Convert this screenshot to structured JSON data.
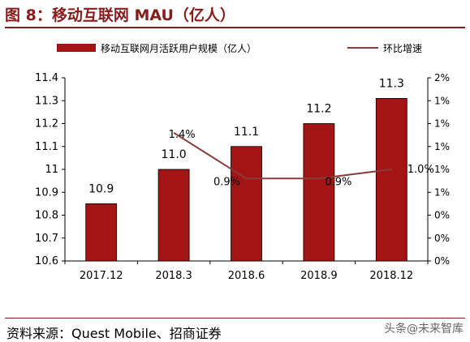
{
  "figure": {
    "title": "图 8：移动互联网 MAU（亿人）",
    "source": "资料来源：Quest Mobile、招商证券",
    "watermark": "头条@未来智库"
  },
  "chart_data": {
    "type": "bar",
    "categories": [
      "2017.12",
      "2018.3",
      "2018.6",
      "2018.9",
      "2018.12"
    ],
    "series": [
      {
        "name": "移动互联网月活跃用户规模（亿人）",
        "type": "bar",
        "axis": "left",
        "values": [
          10.85,
          11.0,
          11.1,
          11.2,
          11.31
        ],
        "data_labels": [
          "10.9",
          "11.0",
          "11.1",
          "11.2",
          "11.3"
        ],
        "color": "#a31515"
      },
      {
        "name": "环比增速",
        "type": "line",
        "axis": "right",
        "values": [
          null,
          1.4,
          0.9,
          0.9,
          1.0
        ],
        "data_labels": [
          "",
          "1.4%",
          "0.9%",
          "0.9%",
          "1.0%"
        ],
        "color": "#8b3a3a"
      }
    ],
    "y_left": {
      "ylim": [
        10.6,
        11.4
      ],
      "ticks": [
        10.6,
        10.7,
        10.8,
        10.9,
        11.0,
        11.1,
        11.2,
        11.3,
        11.4
      ],
      "tick_labels": [
        "10.6",
        "10.7",
        "10.8",
        "10.9",
        "11",
        "11.1",
        "11.2",
        "11.3",
        "11.4"
      ]
    },
    "y_right": {
      "ylim": [
        0,
        2
      ],
      "tick_labels": [
        "0%",
        "0%",
        "0%",
        "1%",
        "1%",
        "1%",
        "1%",
        "1%",
        "2%"
      ]
    },
    "legend": "top",
    "grid": false
  }
}
